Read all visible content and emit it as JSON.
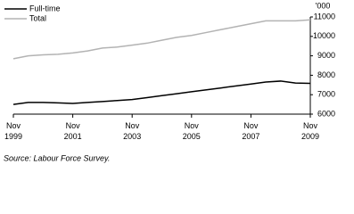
{
  "chart_data": {
    "type": "line",
    "y_unit_label": "'000",
    "categories": [
      "Nov 1999",
      null,
      null,
      null,
      "Nov 2001",
      null,
      null,
      null,
      "Nov 2003",
      null,
      null,
      null,
      "Nov 2005",
      null,
      null,
      null,
      "Nov 2007",
      null,
      null,
      null,
      "Nov 2009"
    ],
    "series": [
      {
        "name": "Full-time",
        "color": "#000000",
        "values": [
          6500,
          6600,
          6600,
          6580,
          6550,
          6600,
          6650,
          6700,
          6750,
          6850,
          6950,
          7050,
          7150,
          7250,
          7350,
          7450,
          7550,
          7650,
          7700,
          7600,
          7580
        ]
      },
      {
        "name": "Total",
        "color": "#b3b3b3",
        "values": [
          8850,
          9000,
          9050,
          9080,
          9150,
          9250,
          9400,
          9450,
          9550,
          9650,
          9800,
          9950,
          10050,
          10200,
          10350,
          10500,
          10650,
          10800,
          10800,
          10800,
          10850
        ]
      }
    ],
    "ylim": [
      6000,
      11000
    ],
    "yticks": [
      6000,
      7000,
      8000,
      9000,
      10000,
      11000
    ],
    "grid": false,
    "legend": "top-left",
    "source": "Source: Labour Force Survey."
  }
}
